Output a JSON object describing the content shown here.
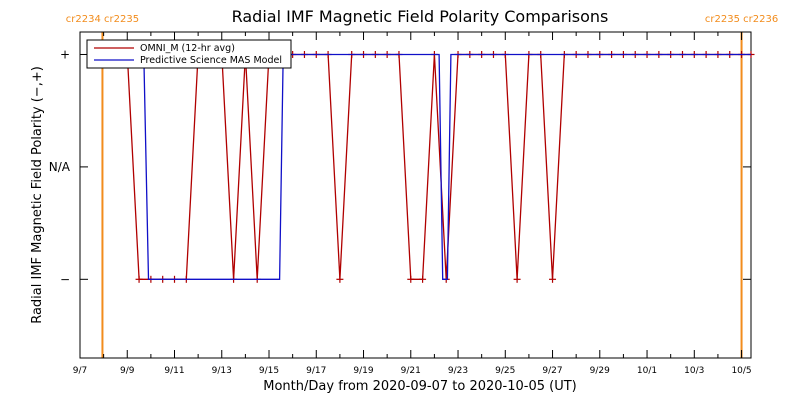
{
  "chart_data": {
    "type": "line",
    "title": "Radial IMF Magnetic Field Polarity Comparisons",
    "xlabel": "Month/Day from 2020-09-07 to 2020-10-05 (UT)",
    "ylabel": "Radial IMF Magnetic Field Polarity (−,+)",
    "x_unit": "days from 2020-09-07 00:00 UT",
    "xlim": [
      0,
      28.4
    ],
    "ylim": [
      -1.7,
      1.2
    ],
    "ytick_values": [
      1,
      0,
      -1
    ],
    "ytick_labels": [
      "+",
      "N/A",
      "−"
    ],
    "xticks": [
      {
        "x": 0,
        "label": "9/7"
      },
      {
        "x": 2,
        "label": "9/9"
      },
      {
        "x": 4,
        "label": "9/11"
      },
      {
        "x": 6,
        "label": "9/13"
      },
      {
        "x": 8,
        "label": "9/15"
      },
      {
        "x": 10,
        "label": "9/17"
      },
      {
        "x": 12,
        "label": "9/19"
      },
      {
        "x": 14,
        "label": "9/21"
      },
      {
        "x": 16,
        "label": "9/23"
      },
      {
        "x": 18,
        "label": "9/25"
      },
      {
        "x": 20,
        "label": "9/27"
      },
      {
        "x": 22,
        "label": "9/29"
      },
      {
        "x": 24,
        "label": "10/1"
      },
      {
        "x": 26,
        "label": "10/3"
      },
      {
        "x": 28,
        "label": "10/5"
      }
    ],
    "rotations": [
      {
        "x": 0.95,
        "label": "cr2234 cr2235"
      },
      {
        "x": 28.0,
        "label": "cr2235 cr2236"
      }
    ],
    "legend_position": "top-left",
    "series": [
      {
        "name": "OMNI_M (12-hr avg)",
        "color": "#b00000",
        "style": "line-markers",
        "x": [
          1.0,
          1.5,
          2.0,
          2.5,
          3.0,
          3.5,
          4.0,
          4.5,
          5.0,
          5.5,
          6.0,
          6.5,
          7.0,
          7.5,
          8.0,
          8.5,
          9.0,
          9.5,
          10.0,
          10.5,
          11.0,
          11.5,
          12.0,
          12.5,
          13.0,
          13.5,
          14.0,
          14.5,
          15.0,
          15.5,
          16.0,
          16.5,
          17.0,
          17.5,
          18.0,
          18.5,
          19.0,
          19.5,
          20.0,
          20.5,
          21.0,
          21.5,
          22.0,
          22.5,
          23.0,
          23.5,
          24.0,
          24.5,
          25.0,
          25.5,
          26.0,
          26.5,
          27.0,
          27.5,
          28.0,
          28.4
        ],
        "y": [
          1,
          1,
          1,
          -1,
          -1,
          -1,
          -1,
          -1,
          1,
          1,
          1,
          -1,
          1,
          -1,
          1,
          1,
          1,
          1,
          1,
          1,
          -1,
          1,
          1,
          1,
          1,
          1,
          -1,
          -1,
          1,
          -1,
          1,
          1,
          1,
          1,
          1,
          -1,
          1,
          1,
          -1,
          1,
          1,
          1,
          1,
          1,
          1,
          1,
          1,
          1,
          1,
          1,
          1,
          1,
          1,
          1,
          1,
          1
        ]
      },
      {
        "name": "Predictive Science MAS Model",
        "color": "#1010c8",
        "style": "step",
        "x": [
          0.95,
          2.7,
          2.9,
          8.45,
          8.6,
          15.2,
          15.35,
          15.55,
          15.7,
          16.05,
          16.2,
          28.4
        ],
        "y": [
          1,
          1,
          -1,
          -1,
          1,
          1,
          -1,
          -1,
          1,
          1,
          1,
          1
        ]
      }
    ]
  }
}
